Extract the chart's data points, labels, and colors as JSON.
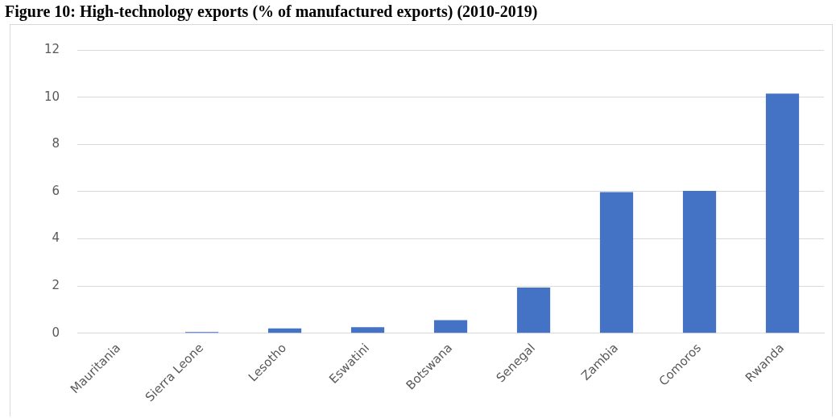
{
  "chart_data": {
    "type": "bar",
    "title": "Figure 10: High-technology exports (% of manufactured exports) (2010-2019)",
    "categories": [
      "Mauritania",
      "Sierra Leone",
      "Lesotho",
      "Eswatini",
      "Botswana",
      "Senegal",
      "Zambia",
      "Comoros",
      "Rwanda"
    ],
    "values": [
      0,
      0.05,
      0.2,
      0.25,
      0.55,
      1.93,
      5.98,
      6.03,
      10.15
    ],
    "color": "#4472c4",
    "ylim": [
      0,
      12
    ],
    "yticks": [
      0,
      2,
      4,
      6,
      8,
      10,
      12
    ],
    "grid": "y"
  }
}
